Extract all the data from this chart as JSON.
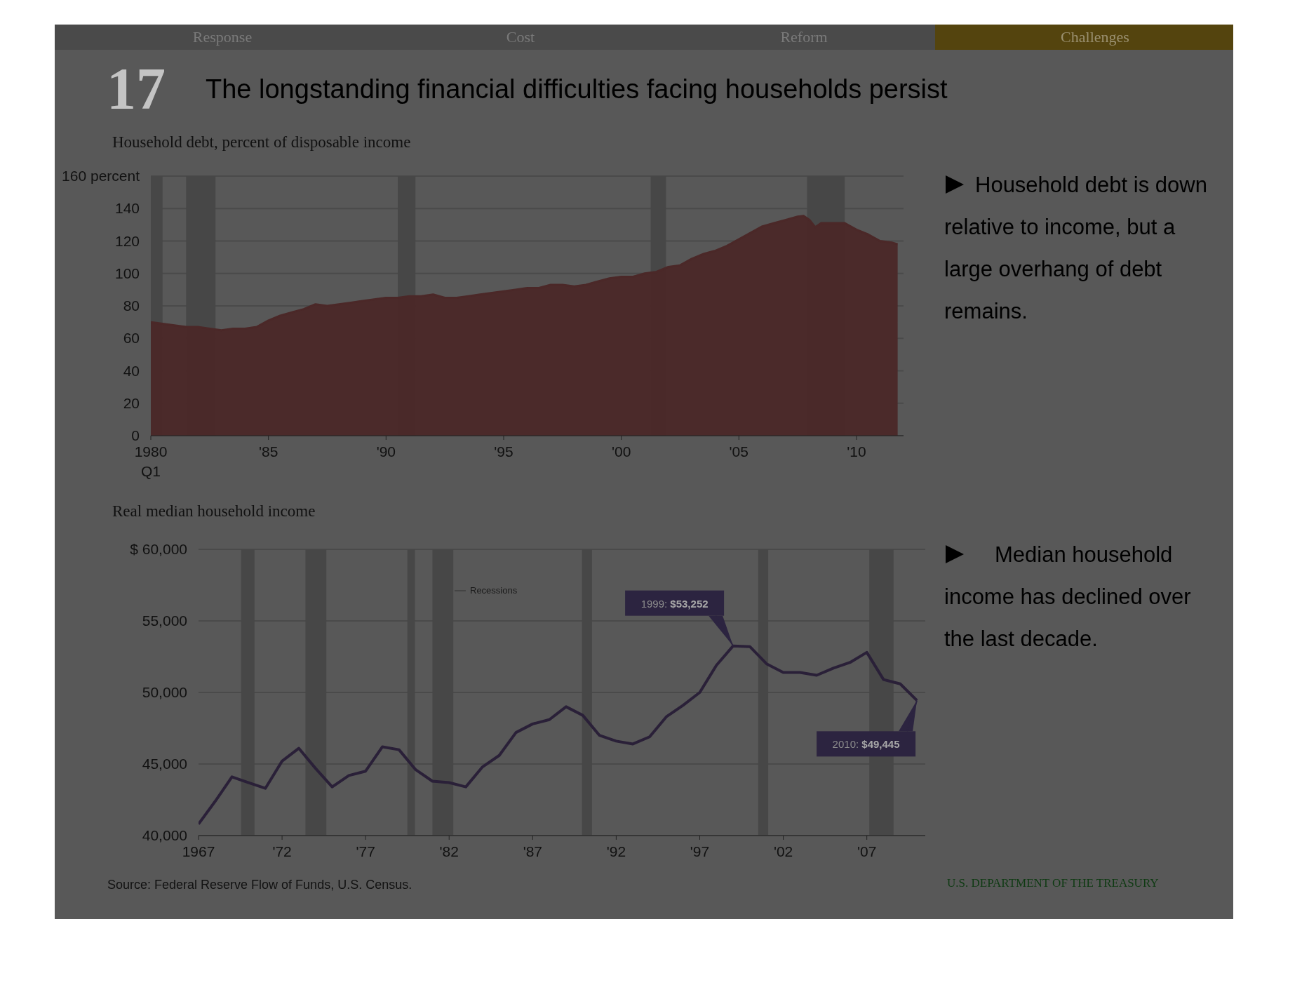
{
  "chart_data": [
    {
      "type": "area",
      "title": "The longstanding financial difficulties facing households persist",
      "subtitle": "Household debt, percent of disposable income",
      "annotations": [
        "17",
        "Response",
        "Cost",
        "Reform",
        "Challenges",
        "Household debt is down relative to income, but a large overhang of debt remains."
      ],
      "x": [
        1980,
        1980.5,
        1981,
        1981.5,
        1982,
        1982.5,
        1983,
        1983.5,
        1984,
        1984.5,
        1985,
        1985.5,
        1986,
        1986.5,
        1987,
        1987.5,
        1988,
        1988.5,
        1989,
        1989.5,
        1990,
        1990.5,
        1991,
        1991.5,
        1992,
        1992.5,
        1993,
        1993.5,
        1994,
        1994.5,
        1995,
        1995.5,
        1996,
        1996.5,
        1997,
        1997.5,
        1998,
        1998.5,
        1999,
        1999.5,
        2000,
        2000.5,
        2001,
        2001.5,
        2002,
        2002.5,
        2003,
        2003.5,
        2004,
        2004.5,
        2005,
        2005.5,
        2006,
        2006.5,
        2007,
        2007.5,
        2007.75,
        2008,
        2008.25,
        2008.5,
        2009,
        2009.5,
        2010,
        2010.5,
        2011,
        2011.5,
        2011.75
      ],
      "values": [
        70,
        69,
        68,
        67,
        67,
        66,
        65,
        66,
        66,
        67,
        71,
        74,
        76,
        78,
        81,
        80,
        81,
        82,
        83,
        84,
        85,
        85,
        86,
        86,
        87,
        85,
        85,
        86,
        87,
        88,
        89,
        90,
        91,
        91,
        93,
        93,
        92,
        93,
        95,
        97,
        98,
        98,
        100,
        101,
        104,
        105,
        109,
        112,
        114,
        117,
        121,
        125,
        129,
        131,
        133,
        135,
        135.5,
        133,
        128.5,
        131,
        131,
        131,
        127,
        124,
        120,
        119,
        118
      ],
      "color": "#4b2828",
      "xlim": [
        1980,
        2012
      ],
      "xticks": [
        {
          "value": 1980,
          "label": "1980 Q1"
        },
        {
          "value": 1985,
          "label": "'85"
        },
        {
          "value": 1990,
          "label": "'90"
        },
        {
          "value": 1995,
          "label": "'95"
        },
        {
          "value": 2000,
          "label": "'00"
        },
        {
          "value": 2005,
          "label": "'05"
        },
        {
          "value": 2010,
          "label": "'10"
        }
      ],
      "ylim": [
        0,
        160
      ],
      "yticks": [
        0,
        20,
        40,
        60,
        80,
        100,
        120,
        140,
        {
          "value": 160,
          "label": "160 percent"
        }
      ],
      "grid": "y",
      "bands": [
        {
          "axis": "x",
          "from": 1980,
          "to": 1980.5,
          "color": "#474747"
        },
        {
          "axis": "x",
          "from": 1981.5,
          "to": 1982.75,
          "color": "#474747"
        },
        {
          "axis": "x",
          "from": 1990.5,
          "to": 1991.25,
          "color": "#474747"
        },
        {
          "axis": "x",
          "from": 2001.25,
          "to": 2001.9,
          "color": "#474747"
        },
        {
          "axis": "x",
          "from": 2007.9,
          "to": 2009.5,
          "color": "#474747"
        }
      ]
    },
    {
      "type": "line",
      "title": "Real median household income",
      "annotations": [
        "Recessions",
        {
          "text": "1999: $53,252",
          "x": 1999,
          "y": 53252
        },
        {
          "text": "2010: $49,445",
          "x": 2010,
          "y": 49445
        },
        "Median household income has declined over the last decade.",
        "Source: Federal Reserve Flow of Funds, U.S. Census.",
        "U.S. DEPARTMENT OF THE TREASURY"
      ],
      "x": [
        1967,
        1968,
        1969,
        1970,
        1971,
        1972,
        1973,
        1974,
        1975,
        1976,
        1977,
        1978,
        1979,
        1980,
        1981,
        1982,
        1983,
        1984,
        1985,
        1986,
        1987,
        1988,
        1989,
        1990,
        1991,
        1992,
        1993,
        1994,
        1995,
        1996,
        1997,
        1998,
        1999,
        2000,
        2001,
        2002,
        2003,
        2004,
        2005,
        2006,
        2007,
        2008,
        2009,
        2010
      ],
      "values": [
        40800,
        42400,
        44100,
        43700,
        43300,
        45200,
        46100,
        44700,
        43400,
        44200,
        44500,
        46200,
        46000,
        44600,
        43800,
        43700,
        43400,
        44800,
        45600,
        47200,
        47800,
        48100,
        49000,
        48400,
        47000,
        46600,
        46400,
        46900,
        48300,
        49100,
        50000,
        51900,
        53252,
        53200,
        52000,
        51400,
        51400,
        51200,
        51700,
        52100,
        52800,
        50900,
        50600,
        49445
      ],
      "color": "#2a2038",
      "xlim": [
        1967,
        2010.5
      ],
      "xticks": [
        1967,
        {
          "value": 1972,
          "label": "'72"
        },
        {
          "value": 1977,
          "label": "'77"
        },
        {
          "value": 1982,
          "label": "'82"
        },
        {
          "value": 1987,
          "label": "'87"
        },
        {
          "value": 1992,
          "label": "'92"
        },
        {
          "value": 1997,
          "label": "'97"
        },
        {
          "value": 2002,
          "label": "'02"
        },
        {
          "value": 2007,
          "label": "'07"
        }
      ],
      "ylim": [
        40000,
        60000
      ],
      "yticks": [
        {
          "value": 40000,
          "label": "40,000"
        },
        {
          "value": 45000,
          "label": "45,000"
        },
        {
          "value": 50000,
          "label": "50,000"
        },
        {
          "value": 55000,
          "label": "55,000"
        },
        {
          "value": 60000,
          "label": "$ 60,000"
        }
      ],
      "grid": "y",
      "bands": [
        {
          "axis": "x",
          "from": 1969.55,
          "to": 1970.35,
          "color": "#474747"
        },
        {
          "axis": "x",
          "from": 1973.4,
          "to": 1974.65,
          "color": "#474747"
        },
        {
          "axis": "x",
          "from": 1979.5,
          "to": 1979.95,
          "color": "#474747"
        },
        {
          "axis": "x",
          "from": 1981,
          "to": 1982.25,
          "color": "#474747"
        },
        {
          "axis": "x",
          "from": 1989.95,
          "to": 1990.55,
          "color": "#474747"
        },
        {
          "axis": "x",
          "from": 2000.5,
          "to": 2001.1,
          "color": "#474747"
        },
        {
          "axis": "x",
          "from": 2007.15,
          "to": 2008.6,
          "color": "#474747"
        }
      ]
    }
  ]
}
